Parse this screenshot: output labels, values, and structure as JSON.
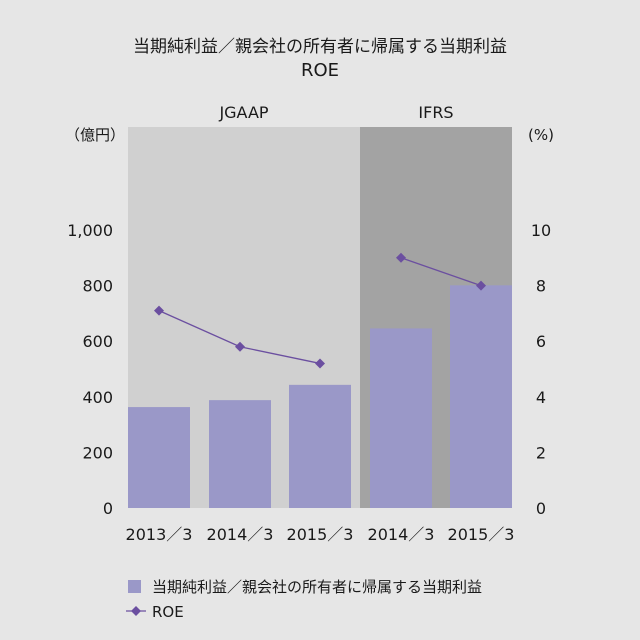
{
  "chart_data": {
    "type": "bar+line",
    "title": "当期純利益／親会社の所有者に帰属する当期利益",
    "subtitle": "ROE",
    "categories": [
      "2013／3",
      "2014／3",
      "2015／3",
      "2014／3",
      "2015／3"
    ],
    "periods": [
      {
        "label": "JGAAP",
        "categories": [
          0,
          1,
          2
        ],
        "color": "#d0d0d0"
      },
      {
        "label": "IFRS",
        "categories": [
          3,
          4
        ],
        "color": "#a3a3a3"
      }
    ],
    "left_axis": {
      "unit": "（億円）",
      "ylim": [
        0,
        1000
      ],
      "ticks": [
        0,
        200,
        400,
        600,
        800,
        "1,000"
      ]
    },
    "right_axis": {
      "unit": "(%)",
      "ylim": [
        0,
        10
      ],
      "ticks": [
        0,
        2,
        4,
        6,
        8,
        10
      ]
    },
    "series": [
      {
        "name": "当期純利益／親会社の所有者に帰属する当期利益",
        "type": "bar",
        "axis": "left",
        "color": "#9a98c8",
        "values": [
          363,
          388,
          443,
          646,
          801
        ]
      },
      {
        "name": "ROE",
        "type": "line",
        "axis": "right",
        "color": "#6b4fa0",
        "values": [
          7.1,
          5.8,
          5.2,
          9.0,
          8.0
        ]
      }
    ],
    "legend_position": "bottom"
  }
}
